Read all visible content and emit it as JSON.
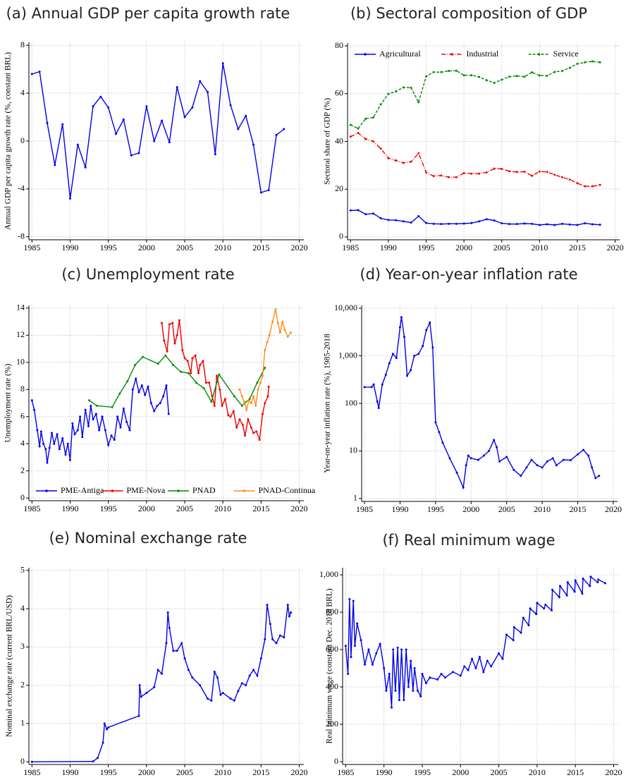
{
  "chart_data": [
    {
      "type": "line",
      "title": "(a) Annual GDP per capita growth rate",
      "ylabel": "Annual GDP per capita growth rate (%, constant BRL)",
      "x": [
        1985,
        1986,
        1987,
        1988,
        1989,
        1990,
        1991,
        1992,
        1993,
        1994,
        1995,
        1996,
        1997,
        1998,
        1999,
        2000,
        2001,
        2002,
        2003,
        2004,
        2005,
        2006,
        2007,
        2008,
        2009,
        2010,
        2011,
        2012,
        2013,
        2014,
        2015,
        2016,
        2017,
        2018
      ],
      "series": [
        {
          "color": "#0000ee",
          "values": [
            5.6,
            5.8,
            1.5,
            -2.0,
            1.4,
            -4.8,
            -0.3,
            -2.2,
            2.9,
            3.7,
            2.8,
            0.6,
            1.8,
            -1.2,
            -1.0,
            2.9,
            0.0,
            1.7,
            -0.1,
            4.5,
            2.0,
            2.8,
            5.0,
            4.1,
            -1.1,
            6.5,
            3.0,
            1.0,
            2.1,
            -0.3,
            -4.3,
            -4.1,
            0.5,
            1.0
          ]
        }
      ],
      "xlim": [
        1984.6,
        2020.6
      ],
      "xticks": [
        1985,
        1990,
        1995,
        2000,
        2005,
        2010,
        2015,
        2020
      ],
      "ylim": [
        -8.25,
        8.25
      ],
      "yticks": [
        -8,
        -4,
        0,
        4,
        8
      ],
      "grid": true
    },
    {
      "type": "line",
      "title": "(b) Sectoral composition of GDP",
      "ylabel": "Sectoral share of GDP (%)",
      "x": [
        1985,
        1986,
        1987,
        1988,
        1989,
        1990,
        1991,
        1992,
        1993,
        1994,
        1995,
        1996,
        1997,
        1998,
        1999,
        2000,
        2001,
        2002,
        2003,
        2004,
        2005,
        2006,
        2007,
        2008,
        2009,
        2010,
        2011,
        2012,
        2013,
        2014,
        2015,
        2016,
        2017,
        2018
      ],
      "series": [
        {
          "name": "Agricultural",
          "color": "#0000ee",
          "linestyle": "solid",
          "values": [
            11.1,
            11.2,
            9.5,
            9.8,
            7.8,
            7.1,
            7.0,
            6.5,
            6.0,
            8.7,
            5.8,
            5.5,
            5.4,
            5.5,
            5.5,
            5.6,
            5.8,
            6.5,
            7.4,
            6.9,
            5.7,
            5.4,
            5.4,
            5.6,
            5.5,
            5.0,
            5.3,
            5.0,
            5.5,
            5.2,
            5.0,
            5.7,
            5.3,
            5.1
          ]
        },
        {
          "name": "Industrial",
          "color": "#ee0000",
          "linestyle": "dashdot",
          "values": [
            42,
            43.5,
            41,
            40,
            37,
            33,
            32,
            31,
            31.5,
            35,
            27,
            25.5,
            25.7,
            25,
            25,
            26.7,
            26.5,
            26.5,
            27,
            28.6,
            28.5,
            27.5,
            27.2,
            27.3,
            25.6,
            27.4,
            27.2,
            26,
            25,
            24,
            22.5,
            21.2,
            21.2,
            21.8
          ]
        },
        {
          "name": "Service",
          "color": "#008b00",
          "linestyle": "dashed",
          "values": [
            46.9,
            45.4,
            49.5,
            50,
            55.5,
            59.9,
            60.9,
            62.6,
            62.5,
            56.4,
            67.2,
            69,
            69,
            69.5,
            69.6,
            67.7,
            67.7,
            67,
            65.6,
            64.5,
            65.8,
            67.1,
            67.4,
            67.1,
            68.9,
            67.6,
            67.5,
            69.1,
            69.5,
            70.8,
            72.5,
            73.1,
            73.5,
            73.1
          ]
        }
      ],
      "xlim": [
        1984.6,
        2020.6
      ],
      "xticks": [
        1985,
        1990,
        1995,
        2000,
        2005,
        2010,
        2015,
        2020
      ],
      "ylim": [
        -1.2,
        81.2
      ],
      "yticks": [
        0,
        20,
        40,
        60,
        80
      ],
      "grid": true,
      "legend": "top"
    },
    {
      "type": "line",
      "title": "(c) Unemployment rate",
      "ylabel": "Unemployment rate (%)",
      "series": [
        {
          "name": "PME-Antiga",
          "color": "#0000ee",
          "x": [
            1985,
            1985.3,
            1985.7,
            1986,
            1986.2,
            1986.5,
            1986.8,
            1987,
            1987.3,
            1987.6,
            1987.9,
            1988.3,
            1988.6,
            1989,
            1989.4,
            1989.7,
            1990,
            1990.3,
            1990.6,
            1991,
            1991.3,
            1991.6,
            1992,
            1992.4,
            1992.7,
            1993,
            1993.4,
            1993.8,
            1994.2,
            1994.6,
            1995,
            1995.4,
            1995.8,
            1996.2,
            1996.6,
            1997,
            1997.4,
            1997.8,
            1998.2,
            1998.6,
            1999,
            1999.4,
            1999.8,
            2000.2,
            2000.6,
            2001,
            2001.4,
            2001.8,
            2002.2,
            2002.6,
            2002.9
          ],
          "values": [
            7.2,
            6.5,
            5.0,
            3.8,
            4.9,
            4.0,
            3.6,
            2.6,
            3.7,
            4.8,
            4.0,
            4.7,
            3.6,
            4.4,
            3.2,
            4.0,
            2.8,
            5.5,
            4.7,
            5.0,
            6.0,
            4.5,
            6.5,
            5.3,
            6.8,
            5.8,
            6.2,
            5.0,
            6.0,
            5.0,
            3.9,
            4.6,
            4.3,
            6.0,
            5.2,
            6.6,
            5.6,
            5.0,
            8.0,
            8.8,
            7.8,
            8.3,
            7.6,
            8.2,
            7.0,
            6.4,
            6.8,
            7.0,
            7.5,
            8.3,
            6.2
          ]
        },
        {
          "name": "PME-Nova",
          "color": "#ee0000",
          "x": [
            2002,
            2002.3,
            2002.7,
            2003,
            2003.4,
            2003.7,
            2004,
            2004.3,
            2004.7,
            2005,
            2005.4,
            2005.8,
            2006,
            2006.4,
            2006.8,
            2007,
            2007.4,
            2007.8,
            2008.2,
            2008.6,
            2008.9,
            2009.2,
            2009.6,
            2009.9,
            2010.3,
            2010.7,
            2011,
            2011.4,
            2011.8,
            2012.2,
            2012.6,
            2012.9,
            2013.3,
            2013.7,
            2014,
            2014.4,
            2014.8,
            2015.2,
            2015.5,
            2015.9,
            2016
          ],
          "values": [
            12.9,
            11.6,
            10.8,
            12.8,
            12.9,
            11.4,
            12.0,
            13.1,
            10.9,
            10.3,
            10.1,
            9.2,
            10.3,
            10.5,
            9.2,
            9.8,
            10.1,
            8.5,
            8.5,
            7.5,
            6.8,
            9.0,
            8.0,
            6.8,
            7.3,
            6.1,
            6.0,
            6.4,
            5.2,
            5.8,
            5.4,
            4.6,
            5.8,
            5.2,
            4.8,
            4.9,
            4.3,
            6.2,
            7.0,
            7.5,
            8.2
          ]
        },
        {
          "name": "PNAD",
          "color": "#008b00",
          "x": [
            1992.5,
            1993.5,
            1995.5,
            1996.5,
            1997.5,
            1998.5,
            1999.5,
            2001.5,
            2002.5,
            2003.5,
            2004.5,
            2005.5,
            2006.5,
            2007.5,
            2008.5,
            2009.5,
            2011.5,
            2012.5,
            2013.5,
            2014.5,
            2015.5
          ],
          "values": [
            7.2,
            6.8,
            6.7,
            7.7,
            8.6,
            9.8,
            10.4,
            9.9,
            10.5,
            9.8,
            9.3,
            9.2,
            8.5,
            8.1,
            7.1,
            9.1,
            7.5,
            6.8,
            7.3,
            8.5,
            9.6
          ]
        },
        {
          "name": "PNAD-Continua",
          "color": "#ff8c1a",
          "x": [
            2012.2,
            2012.5,
            2012.8,
            2013.1,
            2013.4,
            2013.7,
            2014,
            2014.3,
            2014.6,
            2014.9,
            2015.2,
            2015.5,
            2015.8,
            2016.1,
            2016.5,
            2016.9,
            2017.2,
            2017.5,
            2017.8,
            2018.1,
            2018.5,
            2018.9
          ],
          "values": [
            8.0,
            7.5,
            7.1,
            6.5,
            7.2,
            7.0,
            7.5,
            6.8,
            8.0,
            8.5,
            9.0,
            10.9,
            11.5,
            12.0,
            13.0,
            13.9,
            12.9,
            12.2,
            13.0,
            12.4,
            11.9,
            12.2
          ]
        }
      ],
      "xlim": [
        1984.6,
        2020.6
      ],
      "xticks": [
        1985,
        1990,
        1995,
        2000,
        2005,
        2010,
        2015,
        2020
      ],
      "ylim": [
        -0.2,
        14.2
      ],
      "yticks": [
        0,
        2,
        4,
        6,
        8,
        10,
        12,
        14
      ],
      "grid": true,
      "legend": "bottom"
    },
    {
      "type": "line",
      "title": "(d) Year-on-year inflation rate",
      "ylabel": "Year-on-year inflation rate (%), 1985-2018",
      "series": [
        {
          "color": "#0000ee",
          "x": [
            1985,
            1986,
            1986.3,
            1986.8,
            1987,
            1987.5,
            1988,
            1988.5,
            1989,
            1989.5,
            1990,
            1990.2,
            1990.6,
            1991,
            1991.5,
            1992,
            1992.6,
            1993.2,
            1993.7,
            1994.2,
            1994.6,
            1995,
            1995.5,
            1996,
            1997,
            1998,
            1998.9,
            1999.3,
            1999.6,
            2000,
            2001,
            2001.8,
            2002.5,
            2003.2,
            2003.6,
            2004,
            2005,
            2006,
            2007,
            2007.8,
            2008.5,
            2009.3,
            2010,
            2010.7,
            2011.5,
            2012,
            2013,
            2014,
            2015,
            2015.8,
            2016.5,
            2017,
            2017.5,
            2018
          ],
          "values": [
            220,
            220,
            250,
            110,
            80,
            250,
            400,
            700,
            1100,
            900,
            4000,
            6500,
            2500,
            380,
            500,
            1000,
            1100,
            1600,
            3500,
            5000,
            1500,
            40,
            25,
            15,
            7,
            3.5,
            1.7,
            5,
            8,
            7,
            6.5,
            8,
            10,
            17,
            12,
            6,
            7.5,
            4,
            3.0,
            4.5,
            6.5,
            5,
            4.5,
            6,
            7,
            5,
            6.5,
            6.4,
            8.5,
            10.5,
            8,
            4.5,
            2.7,
            3.0
          ]
        }
      ],
      "xlim": [
        1984.6,
        2020.6
      ],
      "xticks": [
        1985,
        1990,
        1995,
        2000,
        2005,
        2010,
        2015,
        2020
      ],
      "ylim": [
        0.87,
        11500
      ],
      "log": true,
      "yticks": [
        1,
        10,
        100,
        {
          "value": 1000,
          "label": "1,000"
        },
        {
          "value": 10000,
          "label": "10,000"
        }
      ],
      "grid": true
    },
    {
      "type": "line",
      "title": "(e) Nominal exchange rate",
      "ylabel": "Nominal exchange rate (current BRL/USD)",
      "series": [
        {
          "color": "#0000ee",
          "x": [
            1985,
            1993,
            1993.6,
            1994.3,
            1994.5,
            1994.8,
            1995,
            1999,
            1999.1,
            1999.3,
            2000,
            2001,
            2001.5,
            2002,
            2002.6,
            2002.8,
            2003,
            2003.5,
            2004,
            2004.6,
            2005,
            2005.5,
            2006,
            2007,
            2008,
            2008.5,
            2008.9,
            2009.3,
            2009.7,
            2010,
            2011,
            2011.5,
            2012,
            2012.5,
            2013,
            2013.5,
            2014,
            2014.5,
            2015,
            2015.5,
            2015.8,
            2016.2,
            2016.5,
            2017,
            2017.5,
            2018,
            2018.5,
            2018.7,
            2018.9
          ],
          "values": [
            0,
            0.01,
            0.1,
            0.5,
            1.0,
            0.85,
            0.9,
            1.2,
            2.0,
            1.7,
            1.8,
            1.95,
            2.4,
            2.3,
            3.1,
            3.9,
            3.5,
            2.9,
            2.9,
            3.1,
            2.7,
            2.4,
            2.2,
            2.0,
            1.65,
            1.6,
            2.35,
            2.2,
            1.75,
            1.8,
            1.65,
            1.6,
            1.85,
            2.05,
            2.0,
            2.25,
            2.4,
            2.25,
            2.7,
            3.2,
            4.1,
            3.6,
            3.2,
            3.1,
            3.3,
            3.25,
            4.1,
            3.8,
            3.9
          ]
        }
      ],
      "xlim": [
        1984.6,
        2020.6
      ],
      "xticks": [
        1985,
        1990,
        1995,
        2000,
        2005,
        2010,
        2015,
        2020
      ],
      "ylim": [
        -0.07,
        5.07
      ],
      "yticks": [
        0,
        1,
        2,
        3,
        4,
        5
      ],
      "grid": true
    },
    {
      "type": "line",
      "title": "(f) Real minimum wage",
      "ylabel": "Real minimum wage (constant Dec. 2018 BRL)",
      "series": [
        {
          "color": "#0000ee",
          "x": [
            1985,
            1985.3,
            1985.5,
            1985.7,
            1986,
            1986.2,
            1986.5,
            1987,
            1987.5,
            1988,
            1988.5,
            1989,
            1989.5,
            1990,
            1990.3,
            1990.7,
            1991,
            1991.2,
            1991.5,
            1991.8,
            1992,
            1992.3,
            1992.6,
            1992.9,
            1993.2,
            1993.5,
            1993.8,
            1994,
            1994.4,
            1994.8,
            1995,
            1995.5,
            1996,
            1997,
            1997.5,
            1998,
            1999,
            2000,
            2000.5,
            2001,
            2001.5,
            2002,
            2002.5,
            2003,
            2003.5,
            2004,
            2005,
            2005.5,
            2006,
            2006.9,
            2007,
            2007.9,
            2008.2,
            2008.9,
            2009.1,
            2009.9,
            2010,
            2010.9,
            2011.1,
            2011.9,
            2012,
            2012.9,
            2013,
            2013.9,
            2014,
            2014.9,
            2015,
            2015.9,
            2016,
            2016.9,
            2017,
            2017.9,
            2018,
            2018.9
          ],
          "values": [
            620,
            470,
            870,
            560,
            860,
            620,
            740,
            650,
            520,
            600,
            520,
            580,
            630,
            500,
            380,
            470,
            290,
            600,
            380,
            610,
            330,
            600,
            330,
            600,
            400,
            540,
            380,
            500,
            380,
            350,
            470,
            420,
            450,
            440,
            470,
            450,
            480,
            460,
            510,
            490,
            550,
            500,
            560,
            480,
            540,
            510,
            580,
            550,
            680,
            650,
            720,
            690,
            770,
            730,
            820,
            790,
            850,
            820,
            840,
            810,
            920,
            880,
            940,
            890,
            960,
            910,
            970,
            900,
            980,
            940,
            990,
            960,
            975,
            955
          ]
        }
      ],
      "xlim": [
        1984.6,
        2020.6
      ],
      "xticks": [
        1985,
        1990,
        1995,
        2000,
        2005,
        2010,
        2015,
        2020
      ],
      "ylim": [
        -15,
        1038
      ],
      "yticks": [
        0,
        200,
        400,
        600,
        800,
        {
          "value": 1000,
          "label": "1,000"
        }
      ],
      "grid": true
    }
  ]
}
